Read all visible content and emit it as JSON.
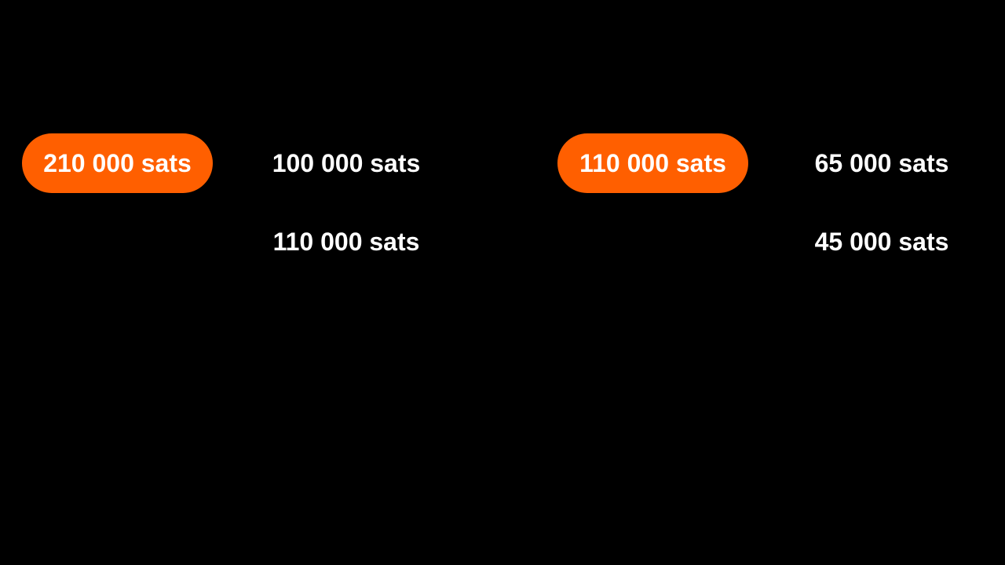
{
  "colors": {
    "background": "#000000",
    "pill": "#ff5f00",
    "text": "#ffffff"
  },
  "groups": [
    {
      "input": "210 000 sats",
      "outputs": [
        "100 000 sats",
        "110 000 sats"
      ]
    },
    {
      "input": "110 000 sats",
      "outputs": [
        "65 000 sats",
        "45 000 sats"
      ]
    }
  ]
}
